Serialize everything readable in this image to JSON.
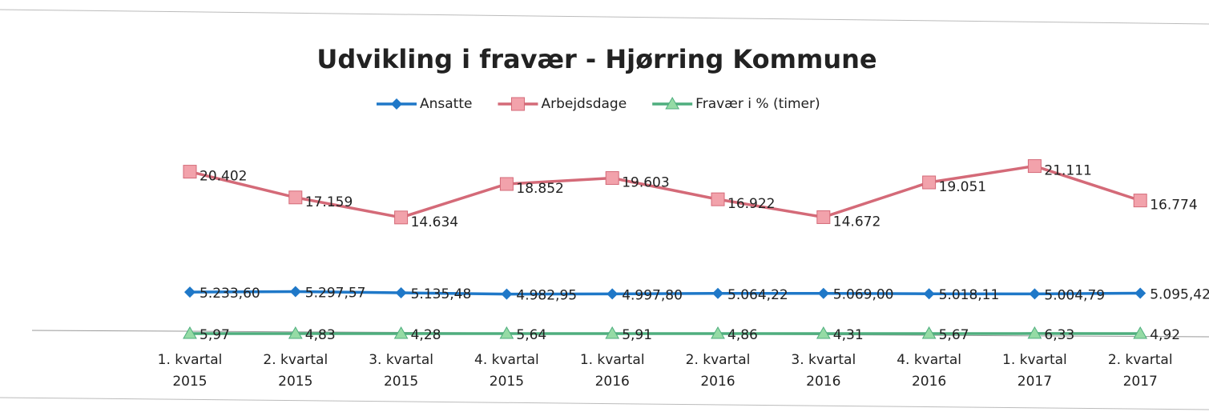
{
  "chart_data": {
    "type": "line",
    "title": "Udvikling i fravær -  Hjørring Kommune",
    "categories": [
      "1. kvartal 2015",
      "2. kvartal 2015",
      "3. kvartal 2015",
      "4. kvartal 2015",
      "1. kvartal 2016",
      "2. kvartal 2016",
      "3. kvartal 2016",
      "4. kvartal 2016",
      "1. kvartal 2017",
      "2. kvartal 2017"
    ],
    "ylim": [
      0,
      25000
    ],
    "legend": "top",
    "series": [
      {
        "name": "Ansatte",
        "color": "#1f78c8",
        "marker": "diamond",
        "values": [
          5233.6,
          5297.57,
          5135.48,
          4982.95,
          4997.8,
          5064.22,
          5069.0,
          5018.11,
          5004.79,
          5095.42
        ],
        "value_labels": [
          "5.233,60",
          "5.297,57",
          "5.135,48",
          "4.982,95",
          "4.997,80",
          "5.064,22",
          "5.069,00",
          "5.018,11",
          "5.004,79",
          "5.095,42"
        ]
      },
      {
        "name": "Arbejdsdage",
        "color": "#d46a78",
        "marker": "square",
        "values": [
          20402,
          17159,
          14634,
          18852,
          19603,
          16922,
          14672,
          19051,
          21111,
          16774
        ],
        "value_labels": [
          "20.402",
          "17.159",
          "14.634",
          "18.852",
          "19.603",
          "16.922",
          "14.672",
          "19.051",
          "21.111",
          "16.774"
        ]
      },
      {
        "name": "Fravær i % (timer)",
        "color": "#4fae7e",
        "marker": "triangle",
        "values": [
          5.97,
          4.83,
          4.28,
          5.64,
          5.91,
          4.86,
          4.31,
          5.67,
          6.33,
          4.92
        ],
        "value_labels": [
          "5,97",
          "4,83",
          "4,28",
          "5,64",
          "5,91",
          "4,86",
          "4,31",
          "5,67",
          "6,33",
          "4,92"
        ]
      }
    ]
  }
}
